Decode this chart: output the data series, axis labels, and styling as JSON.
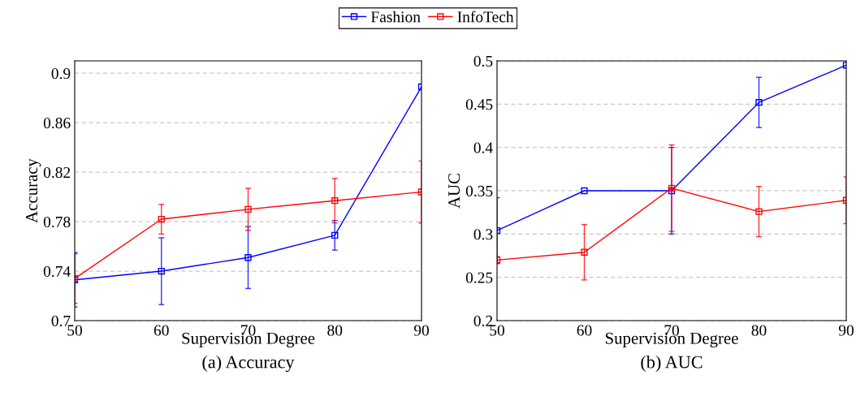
{
  "chart_data": [
    {
      "type": "line",
      "xlabel": "Supervision Degree",
      "ylabel": "Accuracy",
      "annotations": [
        "(a) Accuracy"
      ],
      "x": [
        50,
        60,
        70,
        80,
        90
      ],
      "xlim": [
        50,
        90
      ],
      "xticks": [
        50,
        60,
        70,
        80,
        90
      ],
      "ylim": [
        0.7,
        0.91
      ],
      "yticks": [
        0.7,
        0.74,
        0.78,
        0.82,
        0.86,
        0.9
      ],
      "grid": "y",
      "legend": "top",
      "marker": "square",
      "series": [
        {
          "name": "Fashion",
          "color": "#0000ff",
          "values": [
            0.733,
            0.74,
            0.751,
            0.769,
            0.889
          ],
          "errors": [
            0.022,
            0.027,
            0.025,
            0.012,
            null
          ]
        },
        {
          "name": "InfoTech",
          "color": "#ff0000",
          "values": [
            0.734,
            0.782,
            0.79,
            0.797,
            0.804
          ],
          "errors": [
            0.02,
            0.012,
            0.017,
            0.018,
            0.025
          ]
        }
      ]
    },
    {
      "type": "line",
      "xlabel": "Supervision Degree",
      "ylabel": "AUC",
      "annotations": [
        "(b) AUC"
      ],
      "x": [
        50,
        60,
        70,
        80,
        90
      ],
      "xlim": [
        50,
        90
      ],
      "xticks": [
        50,
        60,
        70,
        80,
        90
      ],
      "ylim": [
        0.2,
        0.5
      ],
      "yticks": [
        0.2,
        0.25,
        0.3,
        0.35,
        0.4,
        0.45,
        0.5
      ],
      "grid": "y",
      "legend": "top",
      "marker": "square",
      "series": [
        {
          "name": "Fashion",
          "color": "#0000ff",
          "values": [
            0.304,
            0.35,
            0.35,
            0.452,
            0.495
          ],
          "errors": [
            0.038,
            null,
            0.05,
            0.029,
            null
          ]
        },
        {
          "name": "InfoTech",
          "color": "#ff0000",
          "values": [
            0.27,
            0.279,
            0.353,
            0.326,
            0.339
          ],
          "errors": [
            0.004,
            0.032,
            0.05,
            0.029,
            0.027
          ]
        }
      ]
    }
  ]
}
